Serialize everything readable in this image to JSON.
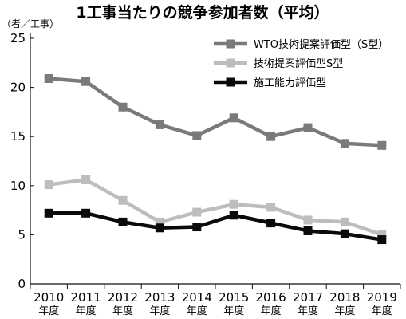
{
  "chart_data": {
    "type": "line",
    "title": "1工事当たりの競争参加者数（平均）",
    "ylabel": "（者／工事）",
    "xlabel": "",
    "categories": [
      "2010",
      "2011",
      "2012",
      "2013",
      "2014",
      "2015",
      "2016",
      "2017",
      "2018",
      "2019"
    ],
    "category_suffix": "年度",
    "ylim": [
      0,
      25
    ],
    "yticks": [
      0,
      5,
      10,
      15,
      20,
      25
    ],
    "grid": false,
    "legend_position": "top-right",
    "series": [
      {
        "name": "WTO技術提案評価型（S型）",
        "color": "#7a7a7a",
        "values": [
          20.9,
          20.6,
          18.0,
          16.2,
          15.1,
          16.9,
          15.0,
          15.9,
          14.3,
          14.1
        ]
      },
      {
        "name": "技術提案評価型S型",
        "color": "#bdbdbd",
        "values": [
          10.1,
          10.6,
          8.5,
          6.3,
          7.3,
          8.1,
          7.8,
          6.5,
          6.3,
          5.0
        ]
      },
      {
        "name": "施工能力評価型",
        "color": "#0a0a0a",
        "values": [
          7.2,
          7.2,
          6.3,
          5.7,
          5.8,
          7.0,
          6.2,
          5.4,
          5.1,
          4.5
        ]
      }
    ]
  }
}
